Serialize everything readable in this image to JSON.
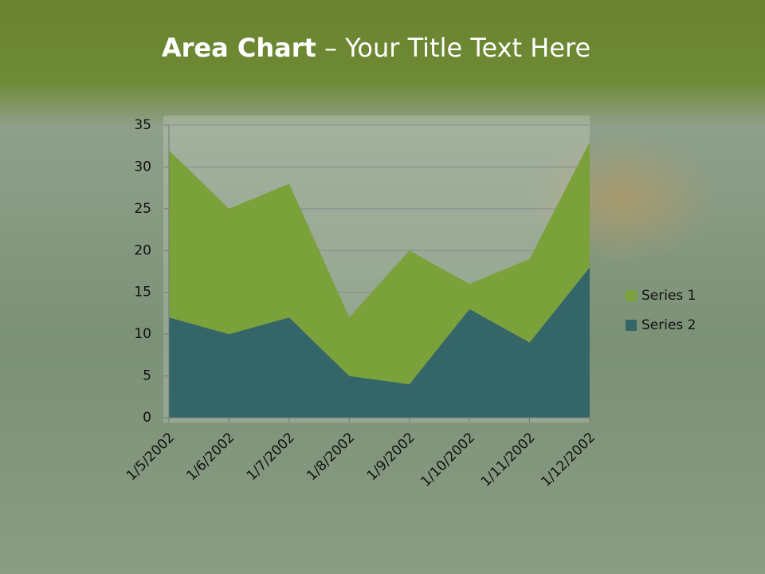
{
  "chart_data": {
    "type": "stacked-area",
    "title": "Area Chart",
    "title_rest": "– Your Title Text Here",
    "categories": [
      "1/5/2002",
      "1/6/2002",
      "1/7/2002",
      "1/8/2002",
      "1/9/2002",
      "1/10/2002",
      "1/11/2002",
      "1/12/2002"
    ],
    "series": [
      {
        "name": "Series 1",
        "color": "#7ba13a",
        "values": [
          20,
          15,
          16,
          7,
          16,
          3,
          10,
          15
        ]
      },
      {
        "name": "Series 2",
        "color": "#346568",
        "values": [
          12,
          10,
          12,
          5,
          4,
          13,
          9,
          18
        ]
      }
    ],
    "ylim": [
      0,
      35
    ],
    "yticks": [
      0,
      5,
      10,
      15,
      20,
      25,
      30,
      35
    ],
    "grid": true,
    "legend": "right"
  }
}
